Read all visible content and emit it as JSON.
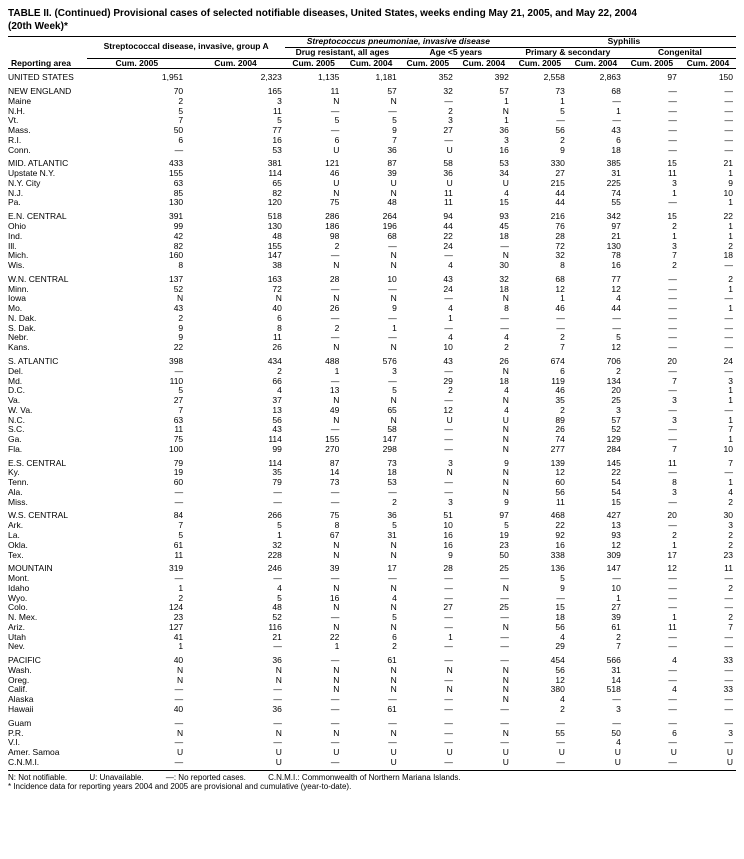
{
  "title": "TABLE II. (Continued) Provisional cases of selected notifiable diseases, United States, weeks ending May 21, 2005, and May 22, 2004",
  "subtitle": "(20th Week)*",
  "headers": {
    "strep_a": "Streptococcal disease, invasive, group A",
    "strep_p": "Streptococcus pneumoniae, invasive disease",
    "drug_resistant": "Drug resistant, all ages",
    "age_lt5": "Age <5 years",
    "syphilis": "Syphilis",
    "primary_secondary": "Primary & secondary",
    "congenital": "Congenital",
    "reporting_area": "Reporting area",
    "cum2005": "Cum. 2005",
    "cum2004": "Cum. 2004"
  },
  "columns_structure": {
    "area_col_width": 90,
    "data_col_width": 54
  },
  "groups": [
    {
      "rows": [
        {
          "area": "UNITED STATES",
          "v": [
            "1,951",
            "2,323",
            "1,135",
            "1,181",
            "352",
            "392",
            "2,558",
            "2,863",
            "97",
            "150"
          ]
        }
      ]
    },
    {
      "rows": [
        {
          "area": "NEW ENGLAND",
          "v": [
            "70",
            "165",
            "11",
            "57",
            "32",
            "57",
            "73",
            "68",
            "—",
            "—"
          ]
        },
        {
          "area": "Maine",
          "v": [
            "2",
            "3",
            "N",
            "N",
            "—",
            "1",
            "1",
            "—",
            "—",
            "—"
          ]
        },
        {
          "area": "N.H.",
          "v": [
            "5",
            "11",
            "—",
            "—",
            "2",
            "N",
            "5",
            "1",
            "—",
            "—"
          ]
        },
        {
          "area": "Vt.",
          "v": [
            "7",
            "5",
            "5",
            "5",
            "3",
            "1",
            "—",
            "—",
            "—",
            "—"
          ]
        },
        {
          "area": "Mass.",
          "v": [
            "50",
            "77",
            "—",
            "9",
            "27",
            "36",
            "56",
            "43",
            "—",
            "—"
          ]
        },
        {
          "area": "R.I.",
          "v": [
            "6",
            "16",
            "6",
            "7",
            "—",
            "3",
            "2",
            "6",
            "—",
            "—"
          ]
        },
        {
          "area": "Conn.",
          "v": [
            "—",
            "53",
            "U",
            "36",
            "U",
            "16",
            "9",
            "18",
            "—",
            "—"
          ]
        }
      ]
    },
    {
      "rows": [
        {
          "area": "MID. ATLANTIC",
          "v": [
            "433",
            "381",
            "121",
            "87",
            "58",
            "53",
            "330",
            "385",
            "15",
            "21"
          ]
        },
        {
          "area": "Upstate N.Y.",
          "v": [
            "155",
            "114",
            "46",
            "39",
            "36",
            "34",
            "27",
            "31",
            "11",
            "1"
          ]
        },
        {
          "area": "N.Y. City",
          "v": [
            "63",
            "65",
            "U",
            "U",
            "U",
            "U",
            "215",
            "225",
            "3",
            "9"
          ]
        },
        {
          "area": "N.J.",
          "v": [
            "85",
            "82",
            "N",
            "N",
            "11",
            "4",
            "44",
            "74",
            "1",
            "10"
          ]
        },
        {
          "area": "Pa.",
          "v": [
            "130",
            "120",
            "75",
            "48",
            "11",
            "15",
            "44",
            "55",
            "—",
            "1"
          ]
        }
      ]
    },
    {
      "rows": [
        {
          "area": "E.N. CENTRAL",
          "v": [
            "391",
            "518",
            "286",
            "264",
            "94",
            "93",
            "216",
            "342",
            "15",
            "22"
          ]
        },
        {
          "area": "Ohio",
          "v": [
            "99",
            "130",
            "186",
            "196",
            "44",
            "45",
            "76",
            "97",
            "2",
            "1"
          ]
        },
        {
          "area": "Ind.",
          "v": [
            "42",
            "48",
            "98",
            "68",
            "22",
            "18",
            "28",
            "21",
            "1",
            "1"
          ]
        },
        {
          "area": "Ill.",
          "v": [
            "82",
            "155",
            "2",
            "—",
            "24",
            "—",
            "72",
            "130",
            "3",
            "2"
          ]
        },
        {
          "area": "Mich.",
          "v": [
            "160",
            "147",
            "—",
            "N",
            "—",
            "N",
            "32",
            "78",
            "7",
            "18"
          ]
        },
        {
          "area": "Wis.",
          "v": [
            "8",
            "38",
            "N",
            "N",
            "4",
            "30",
            "8",
            "16",
            "2",
            "—"
          ]
        }
      ]
    },
    {
      "rows": [
        {
          "area": "W.N. CENTRAL",
          "v": [
            "137",
            "163",
            "28",
            "10",
            "43",
            "32",
            "68",
            "77",
            "—",
            "2"
          ]
        },
        {
          "area": "Minn.",
          "v": [
            "52",
            "72",
            "—",
            "—",
            "24",
            "18",
            "12",
            "12",
            "—",
            "1"
          ]
        },
        {
          "area": "Iowa",
          "v": [
            "N",
            "N",
            "N",
            "N",
            "—",
            "N",
            "1",
            "4",
            "—",
            "—"
          ]
        },
        {
          "area": "Mo.",
          "v": [
            "43",
            "40",
            "26",
            "9",
            "4",
            "8",
            "46",
            "44",
            "—",
            "1"
          ]
        },
        {
          "area": "N. Dak.",
          "v": [
            "2",
            "6",
            "—",
            "—",
            "1",
            "—",
            "—",
            "—",
            "—",
            "—"
          ]
        },
        {
          "area": "S. Dak.",
          "v": [
            "9",
            "8",
            "2",
            "1",
            "—",
            "—",
            "—",
            "—",
            "—",
            "—"
          ]
        },
        {
          "area": "Nebr.",
          "v": [
            "9",
            "11",
            "—",
            "—",
            "4",
            "4",
            "2",
            "5",
            "—",
            "—"
          ]
        },
        {
          "area": "Kans.",
          "v": [
            "22",
            "26",
            "N",
            "N",
            "10",
            "2",
            "7",
            "12",
            "—",
            "—"
          ]
        }
      ]
    },
    {
      "rows": [
        {
          "area": "S. ATLANTIC",
          "v": [
            "398",
            "434",
            "488",
            "576",
            "43",
            "26",
            "674",
            "706",
            "20",
            "24"
          ]
        },
        {
          "area": "Del.",
          "v": [
            "—",
            "2",
            "1",
            "3",
            "—",
            "N",
            "6",
            "2",
            "—",
            "—"
          ]
        },
        {
          "area": "Md.",
          "v": [
            "110",
            "66",
            "—",
            "—",
            "29",
            "18",
            "119",
            "134",
            "7",
            "3"
          ]
        },
        {
          "area": "D.C.",
          "v": [
            "5",
            "4",
            "13",
            "5",
            "2",
            "4",
            "46",
            "20",
            "—",
            "1"
          ]
        },
        {
          "area": "Va.",
          "v": [
            "27",
            "37",
            "N",
            "N",
            "—",
            "N",
            "35",
            "25",
            "3",
            "1"
          ]
        },
        {
          "area": "W. Va.",
          "v": [
            "7",
            "13",
            "49",
            "65",
            "12",
            "4",
            "2",
            "3",
            "—",
            "—"
          ]
        },
        {
          "area": "N.C.",
          "v": [
            "63",
            "56",
            "N",
            "N",
            "U",
            "U",
            "89",
            "57",
            "3",
            "1"
          ]
        },
        {
          "area": "S.C.",
          "v": [
            "11",
            "43",
            "—",
            "58",
            "—",
            "N",
            "26",
            "52",
            "—",
            "7"
          ]
        },
        {
          "area": "Ga.",
          "v": [
            "75",
            "114",
            "155",
            "147",
            "—",
            "N",
            "74",
            "129",
            "—",
            "1"
          ]
        },
        {
          "area": "Fla.",
          "v": [
            "100",
            "99",
            "270",
            "298",
            "—",
            "N",
            "277",
            "284",
            "7",
            "10"
          ]
        }
      ]
    },
    {
      "rows": [
        {
          "area": "E.S. CENTRAL",
          "v": [
            "79",
            "114",
            "87",
            "73",
            "3",
            "9",
            "139",
            "145",
            "11",
            "7"
          ]
        },
        {
          "area": "Ky.",
          "v": [
            "19",
            "35",
            "14",
            "18",
            "N",
            "N",
            "12",
            "22",
            "—",
            "—"
          ]
        },
        {
          "area": "Tenn.",
          "v": [
            "60",
            "79",
            "73",
            "53",
            "—",
            "N",
            "60",
            "54",
            "8",
            "1"
          ]
        },
        {
          "area": "Ala.",
          "v": [
            "—",
            "—",
            "—",
            "—",
            "—",
            "N",
            "56",
            "54",
            "3",
            "4"
          ]
        },
        {
          "area": "Miss.",
          "v": [
            "—",
            "—",
            "—",
            "2",
            "3",
            "9",
            "11",
            "15",
            "—",
            "2"
          ]
        }
      ]
    },
    {
      "rows": [
        {
          "area": "W.S. CENTRAL",
          "v": [
            "84",
            "266",
            "75",
            "36",
            "51",
            "97",
            "468",
            "427",
            "20",
            "30"
          ]
        },
        {
          "area": "Ark.",
          "v": [
            "7",
            "5",
            "8",
            "5",
            "10",
            "5",
            "22",
            "13",
            "—",
            "3"
          ]
        },
        {
          "area": "La.",
          "v": [
            "5",
            "1",
            "67",
            "31",
            "16",
            "19",
            "92",
            "93",
            "2",
            "2"
          ]
        },
        {
          "area": "Okla.",
          "v": [
            "61",
            "32",
            "N",
            "N",
            "16",
            "23",
            "16",
            "12",
            "1",
            "2"
          ]
        },
        {
          "area": "Tex.",
          "v": [
            "11",
            "228",
            "N",
            "N",
            "9",
            "50",
            "338",
            "309",
            "17",
            "23"
          ]
        }
      ]
    },
    {
      "rows": [
        {
          "area": "MOUNTAIN",
          "v": [
            "319",
            "246",
            "39",
            "17",
            "28",
            "25",
            "136",
            "147",
            "12",
            "11"
          ]
        },
        {
          "area": "Mont.",
          "v": [
            "—",
            "—",
            "—",
            "—",
            "—",
            "—",
            "5",
            "—",
            "—",
            "—"
          ]
        },
        {
          "area": "Idaho",
          "v": [
            "1",
            "4",
            "N",
            "N",
            "—",
            "N",
            "9",
            "10",
            "—",
            "2"
          ]
        },
        {
          "area": "Wyo.",
          "v": [
            "2",
            "5",
            "16",
            "4",
            "—",
            "—",
            "—",
            "1",
            "—",
            "—"
          ]
        },
        {
          "area": "Colo.",
          "v": [
            "124",
            "48",
            "N",
            "N",
            "27",
            "25",
            "15",
            "27",
            "—",
            "—"
          ]
        },
        {
          "area": "N. Mex.",
          "v": [
            "23",
            "52",
            "—",
            "5",
            "—",
            "—",
            "18",
            "39",
            "1",
            "2"
          ]
        },
        {
          "area": "Ariz.",
          "v": [
            "127",
            "116",
            "N",
            "N",
            "—",
            "N",
            "56",
            "61",
            "11",
            "7"
          ]
        },
        {
          "area": "Utah",
          "v": [
            "41",
            "21",
            "22",
            "6",
            "1",
            "—",
            "4",
            "2",
            "—",
            "—"
          ]
        },
        {
          "area": "Nev.",
          "v": [
            "1",
            "—",
            "1",
            "2",
            "—",
            "—",
            "29",
            "7",
            "—",
            "—"
          ]
        }
      ]
    },
    {
      "rows": [
        {
          "area": "PACIFIC",
          "v": [
            "40",
            "36",
            "—",
            "61",
            "—",
            "—",
            "454",
            "566",
            "4",
            "33"
          ]
        },
        {
          "area": "Wash.",
          "v": [
            "N",
            "N",
            "N",
            "N",
            "N",
            "N",
            "56",
            "31",
            "—",
            "—"
          ]
        },
        {
          "area": "Oreg.",
          "v": [
            "N",
            "N",
            "N",
            "N",
            "—",
            "N",
            "12",
            "14",
            "—",
            "—"
          ]
        },
        {
          "area": "Calif.",
          "v": [
            "—",
            "—",
            "N",
            "N",
            "N",
            "N",
            "380",
            "518",
            "4",
            "33"
          ]
        },
        {
          "area": "Alaska",
          "v": [
            "—",
            "—",
            "—",
            "—",
            "—",
            "N",
            "4",
            "—",
            "—",
            "—"
          ]
        },
        {
          "area": "Hawaii",
          "v": [
            "40",
            "36",
            "—",
            "61",
            "—",
            "—",
            "2",
            "3",
            "—",
            "—"
          ]
        }
      ]
    },
    {
      "rows": [
        {
          "area": "Guam",
          "v": [
            "—",
            "—",
            "—",
            "—",
            "—",
            "—",
            "—",
            "—",
            "—",
            "—"
          ]
        },
        {
          "area": "P.R.",
          "v": [
            "N",
            "N",
            "N",
            "N",
            "—",
            "N",
            "55",
            "50",
            "6",
            "3"
          ]
        },
        {
          "area": "V.I.",
          "v": [
            "—",
            "—",
            "—",
            "—",
            "—",
            "—",
            "—",
            "4",
            "—",
            "—"
          ]
        },
        {
          "area": "Amer. Samoa",
          "v": [
            "U",
            "U",
            "U",
            "U",
            "U",
            "U",
            "U",
            "U",
            "U",
            "U"
          ]
        },
        {
          "area": "C.N.M.I.",
          "v": [
            "—",
            "U",
            "—",
            "U",
            "—",
            "U",
            "—",
            "U",
            "—",
            "U"
          ]
        }
      ]
    }
  ],
  "footnotes": {
    "n": "N: Not notifiable.",
    "u": "U: Unavailable.",
    "dash": "—: No reported cases.",
    "cnmi": "C.N.M.I.: Commonwealth of Northern Mariana Islands.",
    "asterisk": "* Incidence data for reporting years 2004 and 2005 are provisional and cumulative (year-to-date)."
  }
}
